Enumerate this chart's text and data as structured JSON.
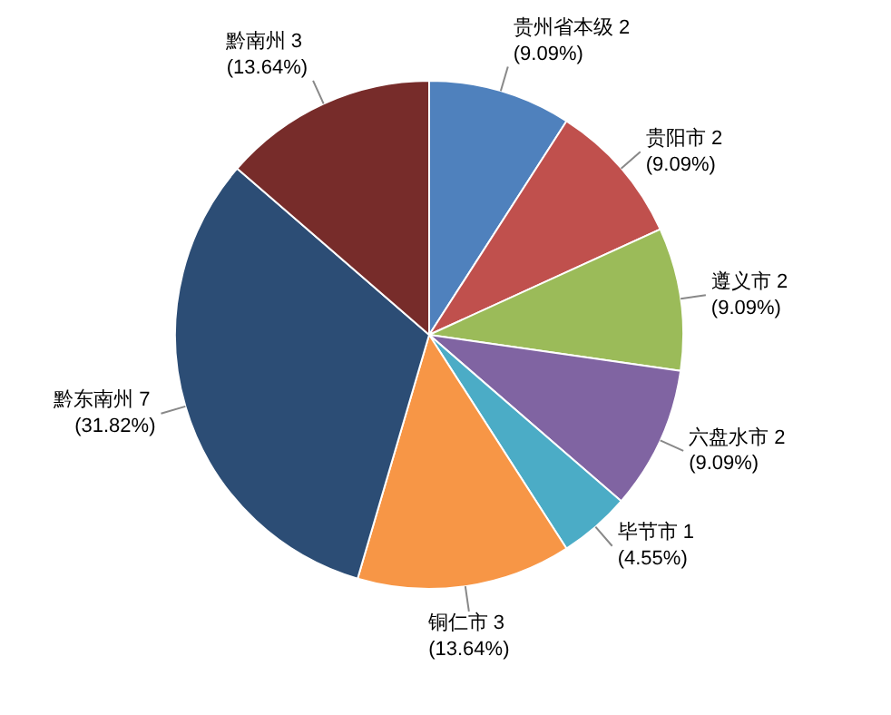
{
  "chart_data": {
    "type": "pie",
    "categories": [
      "贵州省本级",
      "贵阳市",
      "遵义市",
      "六盘水市",
      "毕节市",
      "铜仁市",
      "黔东南州",
      "黔南州"
    ],
    "values": [
      2,
      2,
      2,
      2,
      1,
      3,
      7,
      3
    ],
    "colors": [
      "#4f81bd",
      "#c0504d",
      "#9bbb59",
      "#8064a2",
      "#4bacc6",
      "#f79646",
      "#2c4d75",
      "#772c2a"
    ],
    "value_labels": [
      "2\n(9.09%)",
      "2\n(9.09%)",
      "2\n(9.09%)",
      "2\n(9.09%)",
      "1\n(4.55%)",
      "3\n(13.64%)",
      "7\n(31.82%)",
      "3\n(13.64%)"
    ]
  }
}
